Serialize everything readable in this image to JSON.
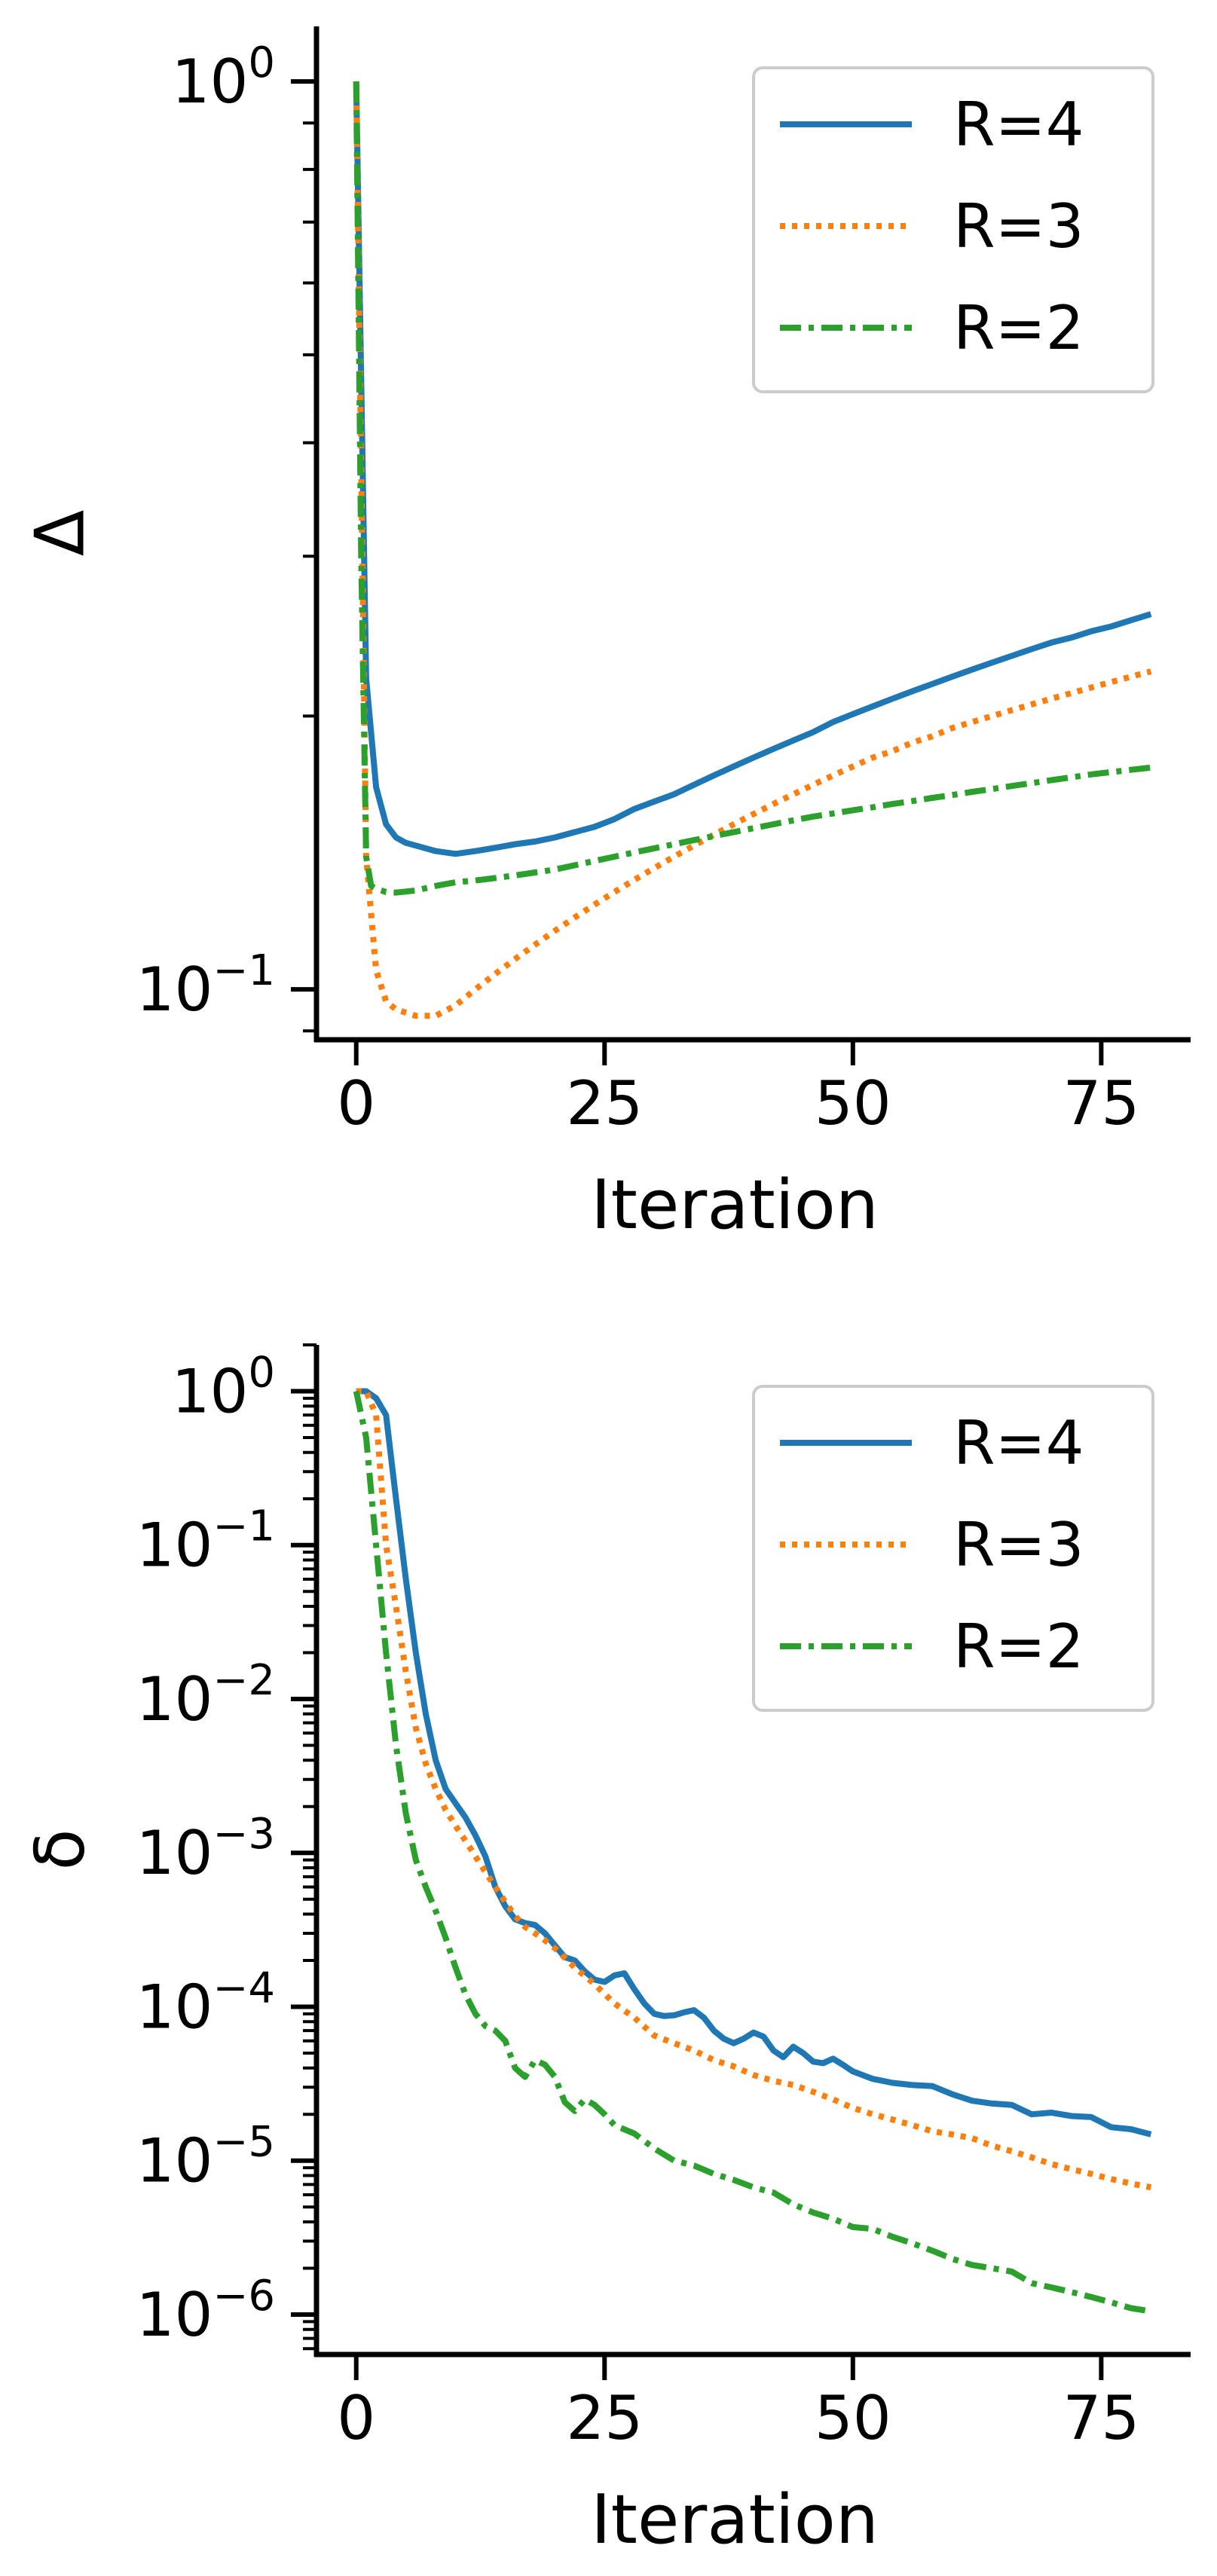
{
  "chart_data": [
    {
      "type": "line",
      "xlabel": "Iteration",
      "ylabel": "Δ",
      "yscale": "log",
      "xlim": [
        -4,
        84
      ],
      "ylim": [
        0.088,
        1.15
      ],
      "x_ticks": [
        0,
        25,
        50,
        75
      ],
      "x_tick_labels": [
        "0",
        "25",
        "50",
        "75"
      ],
      "y_ticks": [
        {
          "value": 1,
          "base": "10",
          "exp": "0"
        },
        {
          "value": 0.1,
          "base": "10",
          "exp": "−1"
        }
      ],
      "legend_position": "top-right",
      "grid": false,
      "series": [
        {
          "name": "R=4",
          "color": "#1f77b4",
          "style": "solid",
          "x": [
            0,
            1,
            2,
            3,
            4,
            5,
            6,
            8,
            10,
            12,
            14,
            16,
            18,
            20,
            22,
            24,
            26,
            28,
            30,
            32,
            34,
            36,
            38,
            40,
            42,
            44,
            46,
            48,
            50,
            52,
            54,
            56,
            58,
            60,
            62,
            64,
            66,
            68,
            70,
            72,
            74,
            76,
            78,
            80
          ],
          "y": [
            1.0,
            0.22,
            0.167,
            0.152,
            0.147,
            0.145,
            0.144,
            0.142,
            0.141,
            0.142,
            0.1432,
            0.1445,
            0.1455,
            0.147,
            0.149,
            0.151,
            0.154,
            0.158,
            0.161,
            0.164,
            0.168,
            0.172,
            0.176,
            0.18,
            0.184,
            0.188,
            0.192,
            0.197,
            0.201,
            0.205,
            0.209,
            0.213,
            0.217,
            0.221,
            0.225,
            0.229,
            0.233,
            0.237,
            0.241,
            0.244,
            0.248,
            0.251,
            0.255,
            0.259
          ]
        },
        {
          "name": "R=3",
          "color": "#ff7f0e",
          "style": "dotted",
          "x": [
            0,
            1,
            2,
            3,
            4,
            6,
            8,
            10,
            12,
            14,
            16,
            18,
            20,
            22,
            24,
            26,
            28,
            30,
            32,
            34,
            36,
            38,
            40,
            42,
            44,
            46,
            48,
            50,
            52,
            54,
            56,
            58,
            60,
            62,
            64,
            66,
            68,
            70,
            72,
            74,
            76,
            78,
            80
          ],
          "y": [
            1.0,
            0.14,
            0.105,
            0.097,
            0.095,
            0.0935,
            0.0935,
            0.096,
            0.1,
            0.104,
            0.108,
            0.112,
            0.116,
            0.12,
            0.124,
            0.128,
            0.132,
            0.136,
            0.14,
            0.144,
            0.148,
            0.152,
            0.156,
            0.16,
            0.164,
            0.168,
            0.172,
            0.176,
            0.18,
            0.183,
            0.187,
            0.19,
            0.194,
            0.197,
            0.2,
            0.203,
            0.206,
            0.209,
            0.212,
            0.215,
            0.218,
            0.221,
            0.224
          ]
        },
        {
          "name": "R=2",
          "color": "#2ca02c",
          "style": "dashdot",
          "x": [
            0,
            0.5,
            1,
            1.5,
            2,
            3,
            4,
            6,
            8,
            10,
            12,
            14,
            16,
            18,
            20,
            22,
            24,
            26,
            28,
            30,
            32,
            34,
            36,
            38,
            40,
            42,
            44,
            46,
            48,
            50,
            52,
            54,
            56,
            58,
            60,
            62,
            64,
            66,
            68,
            70,
            72,
            74,
            76,
            78,
            80
          ],
          "y": [
            1.0,
            0.3,
            0.14,
            0.13,
            0.129,
            0.128,
            0.1278,
            0.1285,
            0.13,
            0.1312,
            0.1318,
            0.1326,
            0.1335,
            0.1345,
            0.1355,
            0.137,
            0.1385,
            0.14,
            0.1415,
            0.143,
            0.1445,
            0.146,
            0.1475,
            0.149,
            0.1505,
            0.152,
            0.1535,
            0.155,
            0.1562,
            0.1575,
            0.1587,
            0.16,
            0.1612,
            0.1625,
            0.1637,
            0.165,
            0.1662,
            0.1675,
            0.1687,
            0.17,
            0.1712,
            0.1725,
            0.1735,
            0.1745,
            0.1755
          ]
        }
      ]
    },
    {
      "type": "line",
      "xlabel": "Iteration",
      "ylabel": "δ",
      "yscale": "log",
      "xlim": [
        -4,
        84
      ],
      "ylim": [
        5.5e-07,
        2.0
      ],
      "x_ticks": [
        0,
        25,
        50,
        75
      ],
      "x_tick_labels": [
        "0",
        "25",
        "50",
        "75"
      ],
      "y_ticks": [
        {
          "value": 1,
          "base": "10",
          "exp": "0"
        },
        {
          "value": 0.1,
          "base": "10",
          "exp": "−1"
        },
        {
          "value": 0.01,
          "base": "10",
          "exp": "−2"
        },
        {
          "value": 0.001,
          "base": "10",
          "exp": "−3"
        },
        {
          "value": 0.0001,
          "base": "10",
          "exp": "−4"
        },
        {
          "value": 1e-05,
          "base": "10",
          "exp": "−5"
        },
        {
          "value": 1e-06,
          "base": "10",
          "exp": "−6"
        }
      ],
      "legend_position": "top-right",
      "grid": false,
      "series": [
        {
          "name": "R=4",
          "color": "#1f77b4",
          "style": "solid",
          "x": [
            0,
            1,
            2,
            3,
            4,
            5,
            6,
            7,
            8,
            9,
            10,
            11,
            12,
            13,
            14,
            15,
            16,
            17,
            18,
            19,
            20,
            21,
            22,
            23,
            24,
            25,
            26,
            27,
            28,
            29,
            30,
            31,
            32,
            33,
            34,
            35,
            36,
            37,
            38,
            39,
            40,
            41,
            42,
            43,
            44,
            45,
            46,
            47,
            48,
            49,
            50,
            52,
            54,
            56,
            58,
            60,
            62,
            64,
            66,
            68,
            70,
            72,
            74,
            76,
            78,
            80
          ],
          "y": [
            1.0,
            1.0,
            0.9,
            0.7,
            0.2,
            0.06,
            0.02,
            0.008,
            0.004,
            0.0026,
            0.0021,
            0.0017,
            0.0013,
            0.00095,
            0.0006,
            0.00045,
            0.00037,
            0.00035,
            0.00034,
            0.0003,
            0.00025,
            0.00021,
            0.0002,
            0.00017,
            0.00015,
            0.000145,
            0.00016,
            0.000165,
            0.00013,
            0.000105,
            9e-05,
            8.7e-05,
            8.8e-05,
            9.2e-05,
            9.5e-05,
            8.5e-05,
            7e-05,
            6.2e-05,
            5.8e-05,
            6.2e-05,
            6.8e-05,
            6.4e-05,
            5.2e-05,
            4.7e-05,
            5.5e-05,
            5e-05,
            4.4e-05,
            4.3e-05,
            4.6e-05,
            4.2e-05,
            3.8e-05,
            3.4e-05,
            3.2e-05,
            3.1e-05,
            3.05e-05,
            2.7e-05,
            2.45e-05,
            2.35e-05,
            2.3e-05,
            2e-05,
            2.05e-05,
            1.95e-05,
            1.92e-05,
            1.65e-05,
            1.6e-05,
            1.48e-05
          ]
        },
        {
          "name": "R=3",
          "color": "#ff7f0e",
          "style": "dotted",
          "x": [
            0,
            1,
            2,
            3,
            4,
            5,
            6,
            7,
            8,
            9,
            10,
            11,
            12,
            13,
            14,
            15,
            16,
            17,
            18,
            19,
            20,
            22,
            24,
            26,
            28,
            30,
            32,
            34,
            36,
            38,
            40,
            42,
            44,
            46,
            48,
            50,
            52,
            54,
            56,
            58,
            60,
            62,
            64,
            66,
            68,
            70,
            72,
            74,
            76,
            78,
            80
          ],
          "y": [
            1.0,
            1.0,
            0.7,
            0.1,
            0.04,
            0.015,
            0.0065,
            0.0038,
            0.0026,
            0.0019,
            0.0015,
            0.0012,
            0.00095,
            0.00075,
            0.0006,
            0.00048,
            0.00039,
            0.00033,
            0.0003,
            0.00027,
            0.00024,
            0.00018,
            0.00014,
            0.000105,
            8.5e-05,
            6.5e-05,
            5.8e-05,
            5.2e-05,
            4.5e-05,
            4.1e-05,
            3.6e-05,
            3.3e-05,
            3.1e-05,
            2.8e-05,
            2.5e-05,
            2.2e-05,
            2e-05,
            1.85e-05,
            1.7e-05,
            1.55e-05,
            1.48e-05,
            1.4e-05,
            1.25e-05,
            1.15e-05,
            1.05e-05,
            9.5e-06,
            8.8e-06,
            8.2e-06,
            7.6e-06,
            7.1e-06,
            6.7e-06
          ]
        },
        {
          "name": "R=2",
          "color": "#2ca02c",
          "style": "dashdot",
          "x": [
            0,
            1,
            2,
            3,
            4,
            5,
            6,
            7,
            8,
            9,
            10,
            11,
            12,
            13,
            14,
            15,
            16,
            17,
            18,
            19,
            20,
            21,
            22,
            23,
            24,
            25,
            26,
            28,
            30,
            32,
            34,
            36,
            38,
            40,
            42,
            44,
            46,
            48,
            50,
            52,
            54,
            56,
            58,
            60,
            62,
            64,
            66,
            68,
            70,
            72,
            74,
            76,
            78,
            80
          ],
          "y": [
            1.0,
            0.5,
            0.1,
            0.02,
            0.005,
            0.0018,
            0.0009,
            0.0006,
            0.00042,
            0.00028,
            0.00018,
            0.00012,
            9e-05,
            7.5e-05,
            7e-05,
            6e-05,
            4e-05,
            3.5e-05,
            4.5e-05,
            4.2e-05,
            3.5e-05,
            2.4e-05,
            2.1e-05,
            2.5e-05,
            2.3e-05,
            2e-05,
            1.7e-05,
            1.5e-05,
            1.2e-05,
            1e-05,
            9.3e-06,
            8.2e-06,
            7.5e-06,
            6.7e-06,
            6.2e-06,
            5.2e-06,
            4.6e-06,
            4.2e-06,
            3.7e-06,
            3.6e-06,
            3.2e-06,
            2.9e-06,
            2.6e-06,
            2.3e-06,
            2.1e-06,
            2e-06,
            1.9e-06,
            1.6e-06,
            1.5e-06,
            1.4e-06,
            1.3e-06,
            1.2e-06,
            1.1e-06,
            1.05e-06
          ]
        }
      ]
    }
  ]
}
